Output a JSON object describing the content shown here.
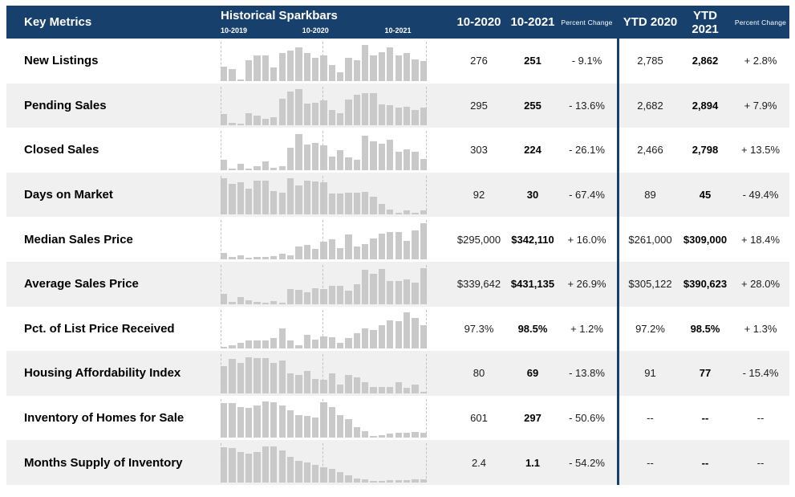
{
  "header": {
    "key_metrics_label": "Key Metrics",
    "sparkbars_title": "Historical Sparkbars",
    "spark_ticks": [
      "10-2019",
      "10-2020",
      "10-2021"
    ],
    "col_month_prior": "10-2020",
    "col_month_current": "10-2021",
    "col_pct_change": "Percent Change",
    "col_ytd_prior": "YTD 2020",
    "col_ytd_current": "YTD 2021",
    "col_ytd_pct_change": "Percent Change"
  },
  "colors": {
    "header_bg": "#17406d",
    "divider": "#17406d",
    "row_alt_bg": "#f0f0f0",
    "bar_fill": "#c9c9c9",
    "dash_line": "#c2c2c2"
  },
  "chart_data": {
    "type": "table",
    "title": "Key Metrics with Historical Sparkbars",
    "sparkbar_x_range": [
      "10-2019",
      "10-2021"
    ],
    "sparkbar_note_units": "relative bar height 0-100 per row",
    "columns": [
      "Key Metrics",
      "Historical Sparkbars",
      "10-2020",
      "10-2021",
      "Percent Change",
      "YTD 2020",
      "YTD 2021",
      "Percent Change"
    ],
    "rows": [
      {
        "label": "New Listings",
        "m_2020": "276",
        "m_2021": "251",
        "pct_change": "- 9.1%",
        "ytd_2020": "2,785",
        "ytd_2021": "2,862",
        "ytd_pct_change": "+ 2.8%",
        "sparkbar": [
          40,
          33,
          4,
          57,
          70,
          72,
          37,
          78,
          85,
          93,
          78,
          65,
          70,
          45,
          25,
          65,
          57,
          100,
          72,
          80,
          93,
          70,
          78,
          60,
          55
        ]
      },
      {
        "label": "Pending Sales",
        "m_2020": "295",
        "m_2021": "255",
        "pct_change": "- 13.6%",
        "ytd_2020": "2,682",
        "ytd_2021": "2,894",
        "ytd_pct_change": "+ 7.9%",
        "sparkbar": [
          30,
          7,
          5,
          33,
          27,
          17,
          23,
          73,
          93,
          100,
          60,
          63,
          68,
          43,
          33,
          70,
          85,
          88,
          88,
          58,
          55,
          48,
          50,
          42,
          48
        ]
      },
      {
        "label": "Closed Sales",
        "m_2020": "303",
        "m_2021": "224",
        "pct_change": "- 26.1%",
        "ytd_2020": "2,466",
        "ytd_2021": "2,798",
        "ytd_pct_change": "+ 13.5%",
        "sparkbar": [
          28,
          5,
          18,
          4,
          10,
          25,
          7,
          12,
          62,
          100,
          70,
          75,
          68,
          38,
          55,
          35,
          28,
          95,
          80,
          73,
          85,
          50,
          57,
          52,
          32
        ]
      },
      {
        "label": "Days on Market",
        "m_2020": "92",
        "m_2021": "30",
        "pct_change": "- 67.4%",
        "ytd_2020": "89",
        "ytd_2021": "45",
        "ytd_pct_change": "- 49.4%",
        "sparkbar": [
          100,
          85,
          88,
          72,
          93,
          93,
          65,
          60,
          100,
          80,
          93,
          90,
          88,
          57,
          57,
          60,
          60,
          62,
          48,
          28,
          13,
          4,
          10,
          4,
          12
        ]
      },
      {
        "label": "Median Sales Price",
        "m_2020": "$295,000",
        "m_2021": "$342,110",
        "pct_change": "+ 16.0%",
        "ytd_2020": "$261,000",
        "ytd_2021": "$309,000",
        "ytd_pct_change": "+ 18.4%",
        "sparkbar": [
          18,
          7,
          12,
          4,
          7,
          7,
          8,
          15,
          10,
          35,
          40,
          28,
          48,
          55,
          30,
          68,
          35,
          42,
          58,
          72,
          75,
          75,
          50,
          80,
          100
        ]
      },
      {
        "label": "Average Sales Price",
        "m_2020": "$339,642",
        "m_2021": "$431,135",
        "pct_change": "+ 26.9%",
        "ytd_2020": "$305,122",
        "ytd_2021": "$390,623",
        "ytd_pct_change": "+ 28.0%",
        "sparkbar": [
          28,
          6,
          20,
          12,
          6,
          3,
          8,
          3,
          42,
          40,
          33,
          45,
          43,
          50,
          52,
          38,
          55,
          95,
          85,
          97,
          65,
          65,
          68,
          60,
          100
        ]
      },
      {
        "label": "Pct. of List Price Received",
        "m_2020": "97.3%",
        "m_2021": "98.5%",
        "pct_change": "+ 1.2%",
        "ytd_2020": "97.2%",
        "ytd_2021": "98.5%",
        "ytd_pct_change": "+ 1.3%",
        "sparkbar": [
          3,
          8,
          15,
          22,
          22,
          22,
          28,
          55,
          22,
          8,
          38,
          25,
          33,
          30,
          15,
          28,
          42,
          55,
          52,
          65,
          78,
          75,
          100,
          85,
          65
        ]
      },
      {
        "label": "Housing Affordability Index",
        "m_2020": "80",
        "m_2021": "69",
        "pct_change": "- 13.8%",
        "ytd_2020": "91",
        "ytd_2021": "77",
        "ytd_pct_change": "- 15.4%",
        "sparkbar": [
          75,
          95,
          85,
          100,
          97,
          97,
          85,
          90,
          55,
          50,
          62,
          40,
          38,
          55,
          25,
          52,
          45,
          30,
          18,
          18,
          18,
          32,
          15,
          25,
          4
        ]
      },
      {
        "label": "Inventory of Homes for Sale",
        "m_2020": "601",
        "m_2021": "297",
        "pct_change": "- 50.6%",
        "ytd_2020": "--",
        "ytd_2021": "--",
        "ytd_pct_change": "--",
        "sparkbar": [
          95,
          95,
          85,
          82,
          88,
          100,
          97,
          88,
          75,
          62,
          60,
          55,
          97,
          85,
          62,
          50,
          28,
          18,
          3,
          7,
          12,
          13,
          13,
          15,
          13
        ]
      },
      {
        "label": "Months Supply of Inventory",
        "m_2020": "2.4",
        "m_2021": "1.1",
        "pct_change": "- 54.2%",
        "ytd_2020": "--",
        "ytd_2021": "--",
        "ytd_pct_change": "--",
        "sparkbar": [
          97,
          95,
          85,
          80,
          85,
          100,
          100,
          88,
          72,
          60,
          55,
          48,
          42,
          38,
          28,
          20,
          12,
          8,
          3,
          5,
          7,
          7,
          7,
          8,
          8
        ]
      }
    ]
  }
}
